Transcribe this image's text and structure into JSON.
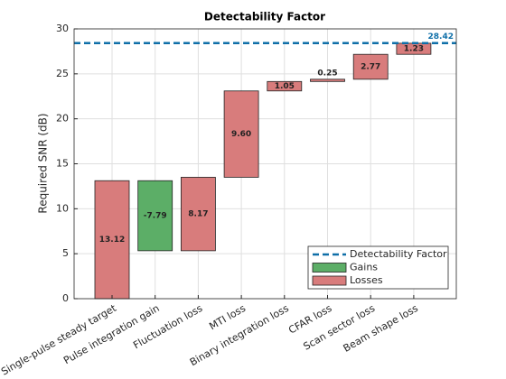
{
  "chart_data": {
    "type": "waterfall",
    "title": "Detectability Factor",
    "ylabel": "Required SNR (dB)",
    "categories": [
      "Single-pulse steady target",
      "Pulse integration gain",
      "Fluctuation loss",
      "MTI loss",
      "Binary integration loss",
      "CFAR loss",
      "Scan sector loss",
      "Beam shape loss"
    ],
    "values": [
      13.12,
      -7.79,
      8.17,
      9.6,
      1.05,
      0.25,
      2.77,
      1.23
    ],
    "value_labels": [
      "13.12",
      "-7.79",
      "8.17",
      "9.60",
      "1.05",
      "0.25",
      "2.77",
      "1.23"
    ],
    "threshold": {
      "name": "Detectability Factor",
      "value": 28.42,
      "label": "28.42",
      "color": "#0f6fa8"
    },
    "gains": {
      "name": "Gains",
      "color": "#5cae67"
    },
    "losses": {
      "name": "Losses",
      "color": "#d87c7c"
    },
    "ylim": [
      0,
      30
    ],
    "yticks": [
      0,
      5,
      10,
      15,
      20,
      25,
      30
    ],
    "grid": true,
    "legend": "lower right"
  }
}
